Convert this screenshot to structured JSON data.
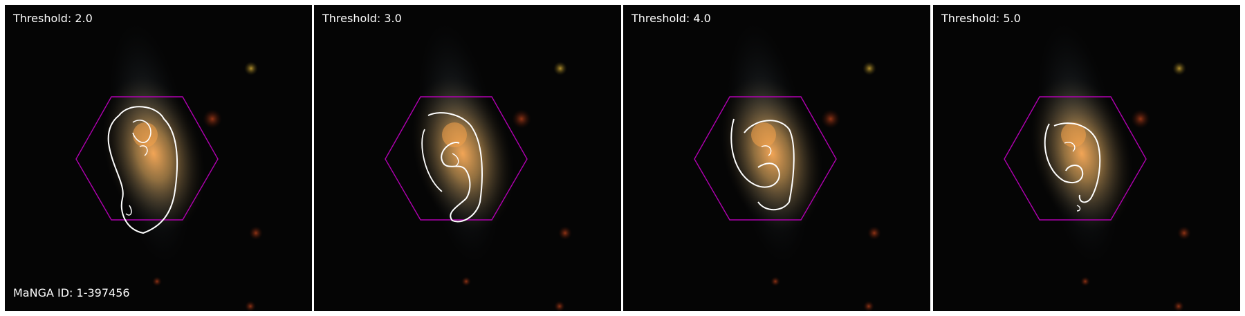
{
  "panels": [
    {
      "threshold_label": "Threshold: 2.0"
    },
    {
      "threshold_label": "Threshold: 3.0"
    },
    {
      "threshold_label": "Threshold: 4.0"
    },
    {
      "threshold_label": "Threshold: 5.0"
    }
  ],
  "manga_id_label": "MaNGA ID: 1-397456",
  "colors": {
    "background": "#050505",
    "hexagon": "#b000b0",
    "contour": "#ffffff",
    "galaxy_core": "#f0a050"
  }
}
